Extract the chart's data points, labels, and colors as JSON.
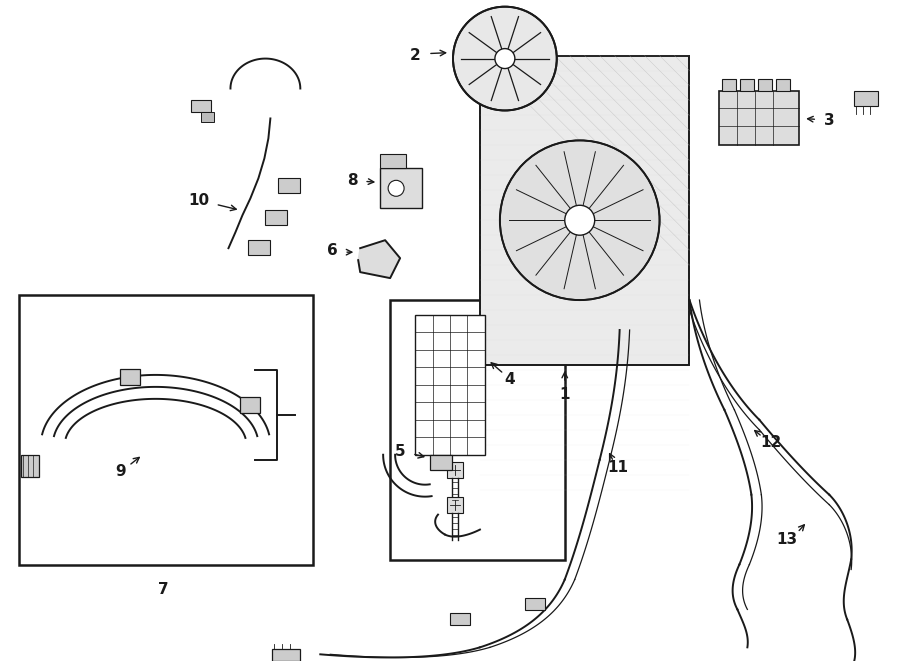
{
  "background_color": "#ffffff",
  "fig_width": 9.0,
  "fig_height": 6.62,
  "dpi": 100,
  "black": "#1a1a1a",
  "gray": "#666666",
  "label_fontsize": 11
}
